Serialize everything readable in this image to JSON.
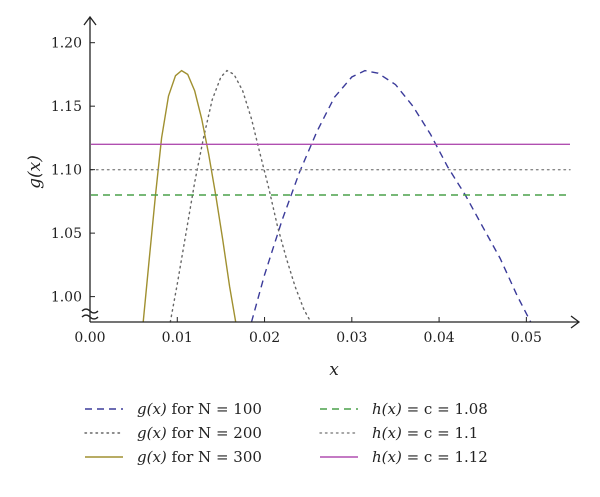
{
  "chart_data": {
    "type": "line",
    "xlabel": "x",
    "ylabel": "g(x)",
    "xlim": [
      0,
      0.055
    ],
    "ylim": [
      0.98,
      1.21
    ],
    "x_ticks": [
      "0.00",
      "0.01",
      "0.02",
      "0.03",
      "0.04",
      "0.05"
    ],
    "y_ticks": [
      "1.00",
      "1.05",
      "1.10",
      "1.15",
      "1.20"
    ],
    "axis_break": "y",
    "series": [
      {
        "name": "g(x) for N = 100",
        "style": "dashed",
        "color": "#3b3b9a",
        "x": [
          0.0185,
          0.02,
          0.022,
          0.024,
          0.026,
          0.028,
          0.03,
          0.0315,
          0.033,
          0.035,
          0.037,
          0.039,
          0.041,
          0.043,
          0.045,
          0.047,
          0.049,
          0.0505
        ],
        "y": [
          0.98,
          1.017,
          1.06,
          1.098,
          1.13,
          1.157,
          1.173,
          1.178,
          1.176,
          1.167,
          1.15,
          1.128,
          1.102,
          1.08,
          1.055,
          1.03,
          1.0,
          0.98
        ]
      },
      {
        "name": "g(x) for N = 200",
        "style": "dotted",
        "color": "#666666",
        "x": [
          0.0092,
          0.01,
          0.011,
          0.012,
          0.013,
          0.014,
          0.015,
          0.0157,
          0.0165,
          0.0175,
          0.0185,
          0.0195,
          0.0205,
          0.0215,
          0.0225,
          0.0235,
          0.0245,
          0.0253
        ],
        "y": [
          0.98,
          1.01,
          1.05,
          1.09,
          1.125,
          1.155,
          1.173,
          1.178,
          1.175,
          1.162,
          1.14,
          1.112,
          1.085,
          1.055,
          1.03,
          1.008,
          0.99,
          0.98
        ]
      },
      {
        "name": "g(x) for N = 300",
        "style": "solid",
        "color": "#a09030",
        "x": [
          0.0061,
          0.0068,
          0.0075,
          0.0082,
          0.009,
          0.0098,
          0.0105,
          0.0112,
          0.012,
          0.0128,
          0.0136,
          0.0144,
          0.0152,
          0.016,
          0.0167
        ],
        "y": [
          0.98,
          1.03,
          1.08,
          1.125,
          1.158,
          1.174,
          1.178,
          1.175,
          1.162,
          1.14,
          1.112,
          1.08,
          1.045,
          1.008,
          0.98
        ]
      },
      {
        "name": "h(x) = c = 1.08",
        "style": "dashed",
        "color": "#4aa04a",
        "x": [
          0,
          0.055
        ],
        "y": [
          1.08,
          1.08
        ]
      },
      {
        "name": "h(x) = c = 1.1",
        "style": "dotted",
        "color": "#888888",
        "x": [
          0,
          0.055
        ],
        "y": [
          1.1,
          1.1
        ]
      },
      {
        "name": "h(x) = c = 1.12",
        "style": "solid",
        "color": "#b04fb0",
        "x": [
          0,
          0.055
        ],
        "y": [
          1.12,
          1.12
        ]
      }
    ],
    "legend": {
      "placement": "bottom",
      "columns": 2,
      "entries": [
        {
          "prefix": "g(x)",
          "suffix": " for N = 100"
        },
        {
          "prefix": "g(x)",
          "suffix": " for N = 200"
        },
        {
          "prefix": "g(x)",
          "suffix": " for N = 300"
        },
        {
          "prefix": "h(x)",
          "suffix": " = c = 1.08"
        },
        {
          "prefix": "h(x)",
          "suffix": " = c = 1.1"
        },
        {
          "prefix": "h(x)",
          "suffix": " = c = 1.12"
        }
      ]
    }
  }
}
